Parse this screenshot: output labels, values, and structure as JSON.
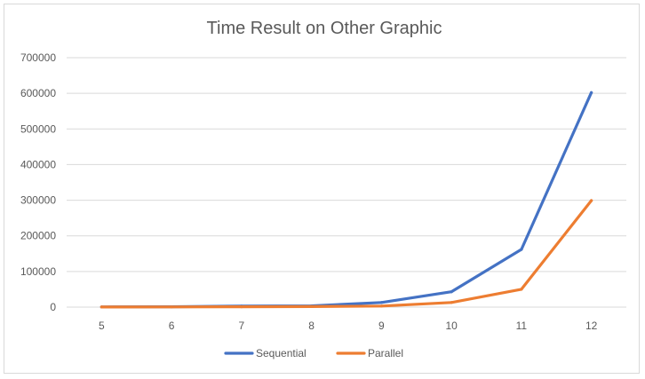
{
  "chart_data": {
    "type": "line",
    "title": "Time Result on Other Graphic",
    "xlabel": "",
    "ylabel": "",
    "categories": [
      "5",
      "6",
      "7",
      "8",
      "9",
      "10",
      "11",
      "12"
    ],
    "ylim": [
      0,
      700000
    ],
    "yticks": [
      0,
      100000,
      200000,
      300000,
      400000,
      500000,
      600000,
      700000
    ],
    "grid": true,
    "legend_position": "bottom",
    "series": [
      {
        "name": "Sequential",
        "color": "#4472c4",
        "values": [
          500,
          1000,
          3000,
          3500,
          13000,
          43000,
          162000,
          602000
        ]
      },
      {
        "name": "Parallel",
        "color": "#ed7d31",
        "values": [
          300,
          500,
          1000,
          1500,
          3000,
          13000,
          50000,
          299000
        ]
      }
    ]
  }
}
